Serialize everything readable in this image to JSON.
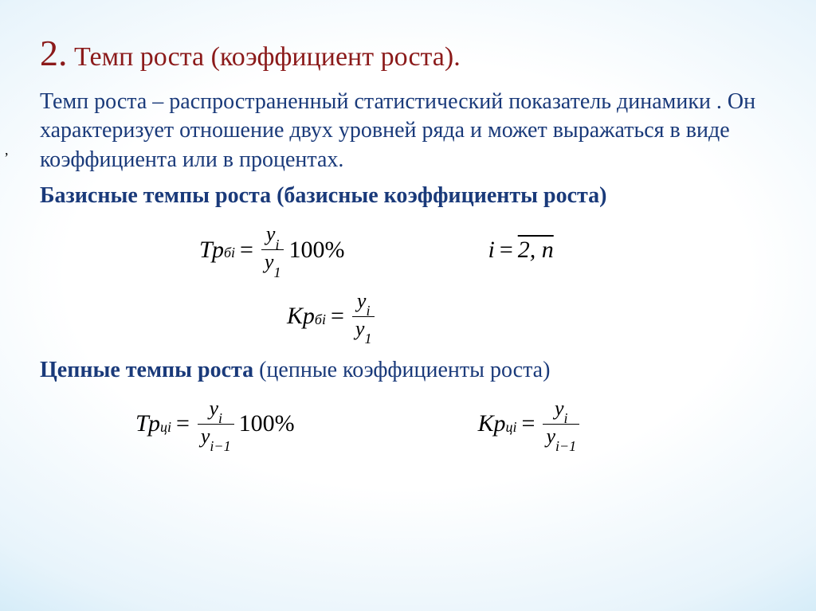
{
  "colors": {
    "title_color": "#8b1a1a",
    "body_text_color": "#1a3a7a",
    "formula_color": "#000000",
    "bg_center": "#ffffff",
    "bg_edge": "#8fcdec"
  },
  "typography": {
    "family": "Times New Roman",
    "title_num_size_pt": 34,
    "title_size_pt": 26,
    "body_size_pt": 21,
    "formula_size_pt": 22
  },
  "title": {
    "number": "2.",
    "text": "Темп роста (коэффициент роста)."
  },
  "paragraph": "Темп роста – распространенный статистический показатель динамики . Он характеризует отношение двух уровней ряда и может выражаться в виде коэффициента или в процентах.",
  "basis_heading": "Базисные темпы роста (базисные коэффициенты роста)",
  "chain_heading_a": "Цепные темпы роста",
  "chain_heading_b": " (цепные коэффициенты роста)",
  "formulas": {
    "tr_basis": {
      "lhs": "Тр",
      "lhs_sub": "бі",
      "num": "y",
      "num_sub": "i",
      "den": "y",
      "den_sub": "1",
      "factor": "100%"
    },
    "i_range": {
      "lhs": "i",
      "val": "2, n"
    },
    "kr_basis": {
      "lhs": "Кр",
      "lhs_sub": "бі",
      "num": "y",
      "num_sub": "i",
      "den": "y",
      "den_sub": "1"
    },
    "tr_chain": {
      "lhs": "Тр",
      "lhs_sub": "ці",
      "num": "y",
      "num_sub": "i",
      "den": "y",
      "den_sub": "i−1",
      "factor": "100%"
    },
    "kr_chain": {
      "lhs": "Кр",
      "lhs_sub": "ці",
      "num": "y",
      "num_sub": "i",
      "den": "y",
      "den_sub": "i−1"
    }
  }
}
